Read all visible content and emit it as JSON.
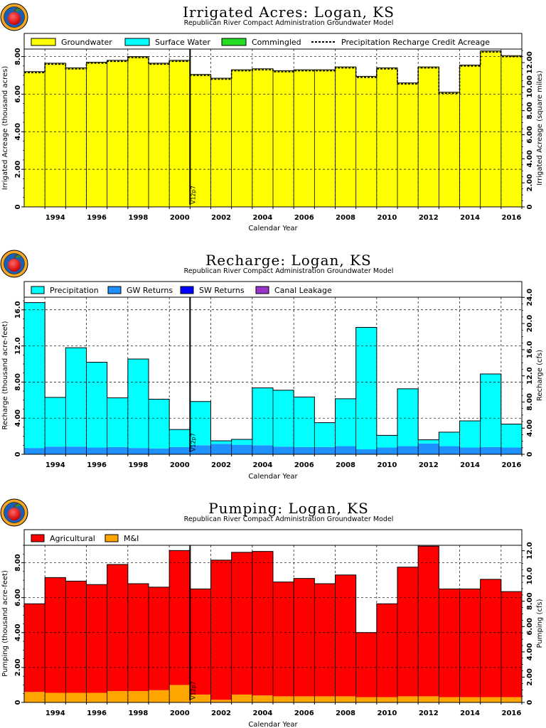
{
  "colors": {
    "groundwater": "#ffff00",
    "surface_water": "#00ffff",
    "commingled": "#22dd22",
    "precipitation": "#00ffff",
    "gw_returns": "#1e90ff",
    "sw_returns": "#0000ff",
    "canal_leakage": "#9933cc",
    "agricultural": "#ff0000",
    "mi": "#ffa500"
  },
  "icons": {
    "logo": "apple-logo"
  },
  "chart_data": [
    {
      "type": "bar",
      "title": "Irrigated Acres: Logan, KS",
      "subtitle": "Republican River Compact Administration Groundwater Model",
      "xlabel": "Calendar Year",
      "ylabel": "Irrigated Acreage (thousand acres)",
      "ylabel_right": "Irrigated Acreage (square miles)",
      "x_ticks": [
        "1994",
        "1996",
        "1998",
        "2000",
        "2002",
        "2004",
        "2006",
        "2008",
        "2010",
        "2012",
        "2014",
        "2016"
      ],
      "x": [
        1993,
        1994,
        1995,
        1996,
        1997,
        1998,
        1999,
        2000,
        2001,
        2002,
        2003,
        2004,
        2005,
        2006,
        2007,
        2008,
        2009,
        2010,
        2011,
        2012,
        2013,
        2014,
        2015,
        2016
      ],
      "ylim": [
        0,
        8.4
      ],
      "y_ticks": [
        "0",
        "2.00",
        "4.00",
        "6.00",
        "8.00"
      ],
      "y_ticks_right": [
        "0",
        "2.00",
        "4.00",
        "6.00",
        "8.00",
        "10.00",
        "12.00"
      ],
      "y_right_max": 13.125,
      "grid": true,
      "legend": [
        "Groundwater",
        "Surface Water",
        "Commingled",
        "Precipitation Recharge Credit Acreage"
      ],
      "legend_placement": "top",
      "marker_label": "V12p7",
      "marker_x": 2000.5,
      "series": [
        {
          "name": "Groundwater",
          "values": [
            7.2,
            7.65,
            7.4,
            7.7,
            7.8,
            8.0,
            7.65,
            7.8,
            7.05,
            6.85,
            7.3,
            7.35,
            7.25,
            7.3,
            7.3,
            7.45,
            6.95,
            7.4,
            6.6,
            7.45,
            6.1,
            7.55,
            8.3,
            8.05
          ]
        },
        {
          "name": "Surface Water",
          "values": [
            0,
            0,
            0,
            0,
            0,
            0,
            0,
            0,
            0,
            0,
            0,
            0,
            0,
            0,
            0,
            0,
            0,
            0,
            0,
            0,
            0,
            0,
            0,
            0
          ]
        },
        {
          "name": "Commingled",
          "values": [
            0,
            0,
            0,
            0,
            0,
            0,
            0,
            0,
            0,
            0,
            0,
            0,
            0,
            0,
            0,
            0,
            0,
            0,
            0,
            0,
            0,
            0,
            0,
            0
          ]
        },
        {
          "name": "Precipitation Recharge Credit Acreage",
          "values": [
            7.2,
            7.65,
            7.4,
            7.7,
            7.8,
            8.0,
            7.65,
            7.8,
            7.05,
            6.85,
            7.3,
            7.35,
            7.25,
            7.3,
            7.3,
            7.45,
            6.95,
            7.4,
            6.6,
            7.45,
            6.1,
            7.55,
            8.3,
            8.05
          ]
        }
      ]
    },
    {
      "type": "bar",
      "title": "Recharge: Logan, KS",
      "subtitle": "Republican River Compact Administration Groundwater Model",
      "xlabel": "Calendar Year",
      "ylabel": "Recharge (thousand acre-feet)",
      "ylabel_right": "Recharge (cfs)",
      "x_ticks": [
        "1994",
        "1996",
        "1998",
        "2000",
        "2002",
        "2004",
        "2006",
        "2008",
        "2010",
        "2012",
        "2014",
        "2016"
      ],
      "x": [
        1993,
        1994,
        1995,
        1996,
        1997,
        1998,
        1999,
        2000,
        2001,
        2002,
        2003,
        2004,
        2005,
        2006,
        2007,
        2008,
        2009,
        2010,
        2011,
        2012,
        2013,
        2014,
        2015,
        2016
      ],
      "ylim": [
        0,
        17.4
      ],
      "y_ticks": [
        "0",
        "4.00",
        "8.00",
        "12.0",
        "16.0"
      ],
      "y_ticks_right": [
        "0",
        "4.00",
        "8.00",
        "12.0",
        "16.0",
        "20.0",
        "24.0"
      ],
      "y_right_max": 24.03,
      "grid": true,
      "legend": [
        "Precipitation",
        "GW Returns",
        "SW Returns",
        "Canal Leakage"
      ],
      "legend_placement": "top",
      "marker_label": "V12p7",
      "marker_x": 2000.5,
      "series": [
        {
          "name": "GW Returns",
          "values": [
            0.7,
            0.85,
            0.85,
            0.75,
            0.8,
            0.7,
            0.65,
            0.8,
            1.0,
            1.15,
            1.05,
            1.0,
            0.85,
            0.8,
            0.8,
            0.9,
            0.55,
            0.75,
            0.9,
            1.2,
            0.9,
            0.75,
            0.8,
            0.75
          ]
        },
        {
          "name": "SW Returns",
          "values": [
            0,
            0,
            0,
            0,
            0,
            0,
            0,
            0,
            0,
            0,
            0,
            0,
            0,
            0,
            0,
            0,
            0,
            0,
            0,
            0,
            0,
            0,
            0,
            0
          ]
        },
        {
          "name": "Canal Leakage",
          "values": [
            0,
            0,
            0,
            0,
            0,
            0,
            0,
            0,
            0,
            0,
            0,
            0,
            0,
            0,
            0,
            0,
            0,
            0,
            0,
            0,
            0,
            0,
            0,
            0
          ]
        },
        {
          "name": "Precipitation",
          "values": [
            16.1,
            5.45,
            10.95,
            9.45,
            5.45,
            9.85,
            5.45,
            1.95,
            4.85,
            0.35,
            0.6,
            6.35,
            6.25,
            5.55,
            2.7,
            5.25,
            13.5,
            1.35,
            6.35,
            0.4,
            1.55,
            2.95,
            8.1,
            2.6
          ]
        }
      ]
    },
    {
      "type": "bar",
      "title": "Pumping: Logan, KS",
      "subtitle": "Republican River Compact Administration Groundwater Model",
      "xlabel": "Calendar Year",
      "ylabel": "Pumping (thousand acre-feet)",
      "ylabel_right": "Pumping (cfs)",
      "x_ticks": [
        "1994",
        "1996",
        "1998",
        "2000",
        "2002",
        "2004",
        "2006",
        "2008",
        "2010",
        "2012",
        "2014",
        "2016"
      ],
      "x": [
        1993,
        1994,
        1995,
        1996,
        1997,
        1998,
        1999,
        2000,
        2001,
        2002,
        2003,
        2004,
        2005,
        2006,
        2007,
        2008,
        2009,
        2010,
        2011,
        2012,
        2013,
        2014,
        2015,
        2016
      ],
      "ylim": [
        0,
        9.0
      ],
      "y_ticks": [
        "0",
        "2.00",
        "4.00",
        "6.00",
        "8.00"
      ],
      "y_ticks_right": [
        "0",
        "2.00",
        "4.00",
        "6.00",
        "8.00",
        "10.0",
        "12.0"
      ],
      "y_right_max": 12.43,
      "grid": true,
      "legend": [
        "Agricultural",
        "M&I"
      ],
      "legend_placement": "top",
      "marker_label": "V12p7",
      "marker_x": 2000.5,
      "series": [
        {
          "name": "M&I",
          "values": [
            0.6,
            0.55,
            0.55,
            0.55,
            0.65,
            0.65,
            0.7,
            1.0,
            0.45,
            0.15,
            0.45,
            0.4,
            0.35,
            0.35,
            0.35,
            0.35,
            0.3,
            0.3,
            0.35,
            0.35,
            0.3,
            0.3,
            0.3,
            0.3
          ]
        },
        {
          "name": "Agricultural",
          "values": [
            5.05,
            6.6,
            6.4,
            6.2,
            7.25,
            6.15,
            5.9,
            7.7,
            6.05,
            8.0,
            8.15,
            8.25,
            6.55,
            6.75,
            6.45,
            6.95,
            3.7,
            5.35,
            7.4,
            8.6,
            6.2,
            6.2,
            6.75,
            6.05
          ]
        }
      ]
    }
  ]
}
